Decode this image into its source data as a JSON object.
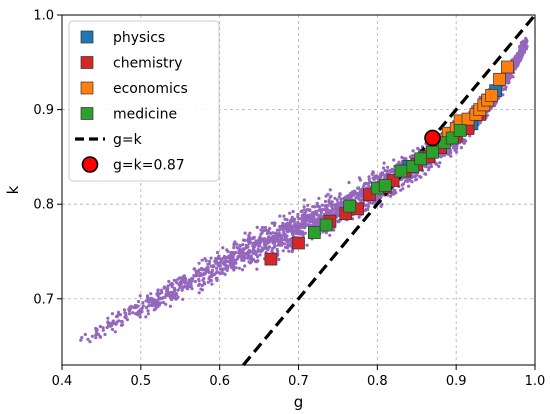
{
  "chart_data": {
    "type": "scatter",
    "xlabel": "g",
    "ylabel": "k",
    "xlim": [
      0.4,
      1.0
    ],
    "ylim": [
      0.63,
      1.0
    ],
    "x_ticks": [
      "0.4",
      "0.5",
      "0.6",
      "0.7",
      "0.8",
      "0.9",
      "1.0"
    ],
    "y_ticks": [
      "0.7",
      "0.8",
      "0.9",
      "1.0"
    ],
    "grid": true,
    "legend_position": "top-left",
    "background_cloud": {
      "color": "#9467bd",
      "description_curve_x": [
        0.42,
        0.5,
        0.6,
        0.7,
        0.8,
        0.9,
        0.95,
        1.0
      ],
      "description_curve_y": [
        0.655,
        0.69,
        0.735,
        0.775,
        0.815,
        0.87,
        0.915,
        0.985
      ]
    },
    "series": [
      {
        "name": "physics",
        "color": "#1f77b4",
        "points": [
          [
            0.84,
            0.84
          ],
          [
            0.86,
            0.85
          ],
          [
            0.88,
            0.86
          ],
          [
            0.9,
            0.875
          ],
          [
            0.92,
            0.885
          ],
          [
            0.93,
            0.895
          ],
          [
            0.94,
            0.91
          ],
          [
            0.95,
            0.92
          ]
        ]
      },
      {
        "name": "chemistry",
        "color": "#d62728",
        "points": [
          [
            0.665,
            0.742
          ],
          [
            0.7,
            0.759
          ],
          [
            0.74,
            0.782
          ],
          [
            0.76,
            0.79
          ],
          [
            0.775,
            0.795
          ],
          [
            0.79,
            0.81
          ],
          [
            0.81,
            0.818
          ],
          [
            0.82,
            0.825
          ],
          [
            0.835,
            0.835
          ],
          [
            0.85,
            0.842
          ],
          [
            0.865,
            0.85
          ],
          [
            0.88,
            0.86
          ],
          [
            0.9,
            0.872
          ],
          [
            0.915,
            0.88
          ],
          [
            0.93,
            0.895
          ]
        ]
      },
      {
        "name": "economics",
        "color": "#ff7f0e",
        "points": [
          [
            0.88,
            0.868
          ],
          [
            0.89,
            0.875
          ],
          [
            0.9,
            0.88
          ],
          [
            0.905,
            0.888
          ],
          [
            0.915,
            0.89
          ],
          [
            0.925,
            0.895
          ],
          [
            0.93,
            0.9
          ],
          [
            0.935,
            0.905
          ],
          [
            0.94,
            0.91
          ],
          [
            0.945,
            0.915
          ],
          [
            0.955,
            0.932
          ],
          [
            0.965,
            0.945
          ]
        ]
      },
      {
        "name": "medicine",
        "color": "#2ca02c",
        "points": [
          [
            0.72,
            0.77
          ],
          [
            0.735,
            0.778
          ],
          [
            0.765,
            0.798
          ],
          [
            0.8,
            0.817
          ],
          [
            0.81,
            0.82
          ],
          [
            0.83,
            0.835
          ],
          [
            0.845,
            0.84
          ],
          [
            0.855,
            0.848
          ],
          [
            0.87,
            0.855
          ],
          [
            0.885,
            0.865
          ],
          [
            0.895,
            0.87
          ],
          [
            0.905,
            0.878
          ]
        ]
      }
    ],
    "reference_line": {
      "name": "g=k",
      "style": "dashed",
      "color": "#000000"
    },
    "highlight_point": {
      "name": "g=k=0.87",
      "x": 0.87,
      "y": 0.87,
      "color": "#ff0000"
    },
    "legend": [
      "physics",
      "chemistry",
      "economics",
      "medicine",
      "g=k",
      "g=k=0.87"
    ]
  }
}
